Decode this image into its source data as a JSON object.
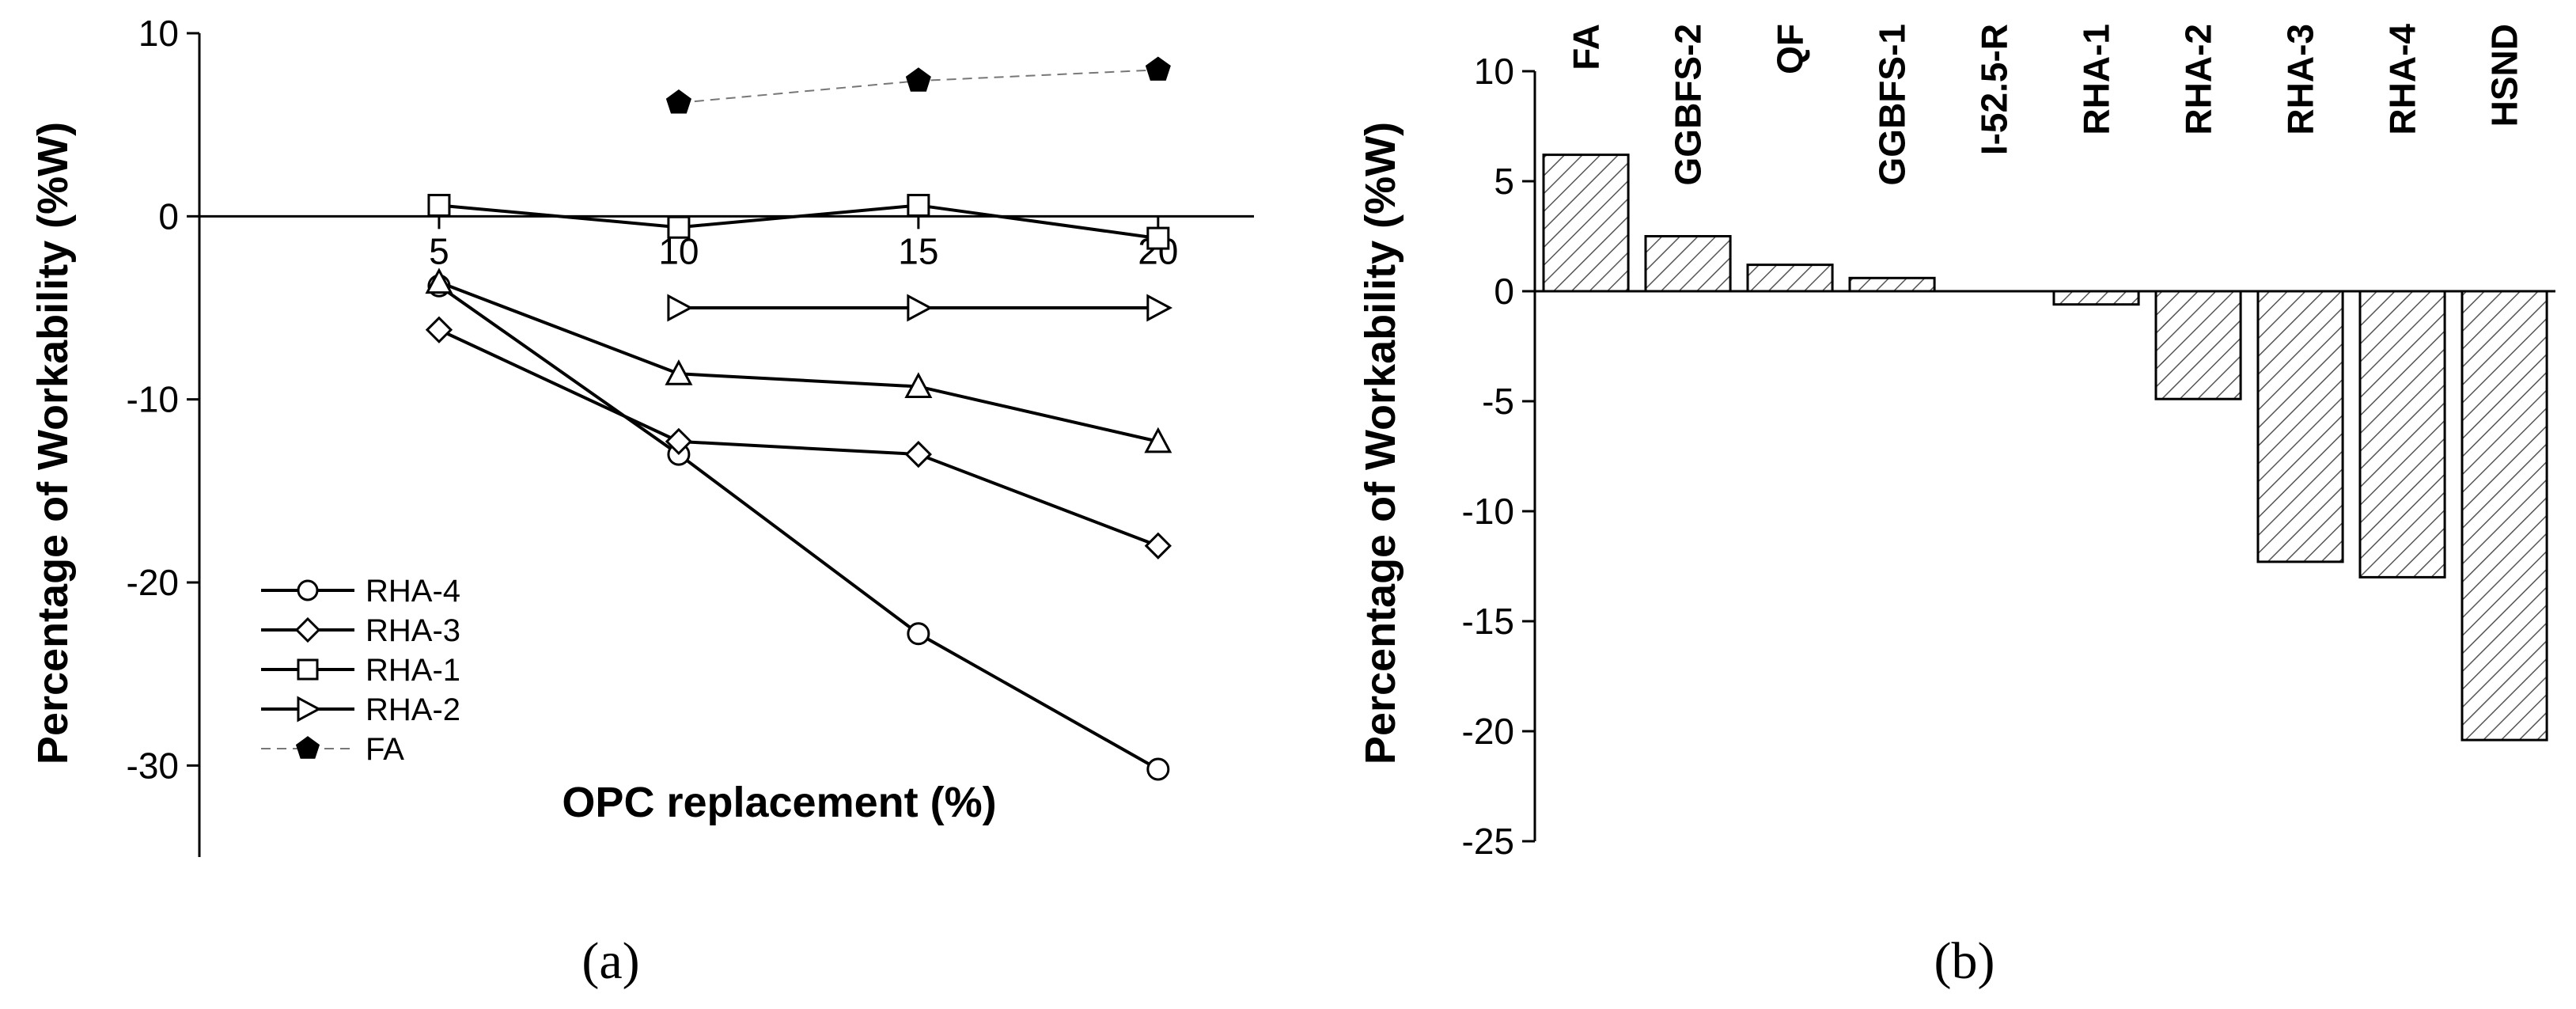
{
  "chart_data": [
    {
      "type": "line",
      "caption": "(a)",
      "xlabel": "OPC replacement (%)",
      "ylabel": "Percentage of Workability (%W)",
      "xlim": [
        0,
        22
      ],
      "ylim": [
        -35,
        10
      ],
      "x_ticks": [
        5,
        10,
        15,
        20
      ],
      "y_ticks": [
        10,
        0,
        -10,
        -20,
        -30
      ],
      "x_tick_labels": [
        "5",
        "10",
        "15",
        "20"
      ],
      "y_tick_labels": [
        "10",
        "0",
        "-10",
        "-20",
        "-30"
      ],
      "legend_position": "middle-left",
      "series": [
        {
          "name": "RHA-4",
          "marker": "circle",
          "line": "solid",
          "x": [
            5,
            10,
            15,
            20
          ],
          "y": [
            -3.8,
            -13,
            -22.8,
            -30.2
          ]
        },
        {
          "name": "RHA-3",
          "marker": "diamond",
          "line": "solid",
          "x": [
            5,
            10,
            15,
            20
          ],
          "y": [
            -6.2,
            -12.3,
            -13,
            -18
          ]
        },
        {
          "name": "RHA-1",
          "marker": "square",
          "line": "solid",
          "x": [
            5,
            10,
            15,
            20
          ],
          "y": [
            0.6,
            -0.6,
            0.6,
            -1.2
          ]
        },
        {
          "name": "RHA-2",
          "marker": "triangle-right",
          "line": "solid",
          "x": [
            10,
            15,
            20
          ],
          "y": [
            -5,
            -5,
            -5
          ]
        },
        {
          "name": "",
          "marker": "triangle-up",
          "line": "solid",
          "x": [
            5,
            10,
            15,
            20
          ],
          "y": [
            -3.6,
            -8.6,
            -9.3,
            -12.3
          ]
        },
        {
          "name": "FA",
          "marker": "pentagon-filled",
          "line": "dashed",
          "x": [
            10,
            15,
            20
          ],
          "y": [
            6.2,
            7.4,
            8
          ]
        }
      ]
    },
    {
      "type": "bar",
      "caption": "(b)",
      "ylabel": "Percentage of Workability (%W)",
      "ylim": [
        -25,
        10
      ],
      "y_ticks": [
        10,
        5,
        0,
        -5,
        -10,
        -15,
        -20,
        -25
      ],
      "y_tick_labels": [
        "10",
        "5",
        "0",
        "-5",
        "-10",
        "-15",
        "-20",
        "-25"
      ],
      "bar_fill": "hatched",
      "categories": [
        "FA",
        "GGBFS-2",
        "QF",
        "GGBFS-1",
        "I-52.5-R",
        "RHA-1",
        "RHA-2",
        "RHA-3",
        "RHA-4",
        "HSND"
      ],
      "values": [
        6.2,
        2.5,
        1.2,
        0.6,
        0,
        -0.6,
        -4.9,
        -12.3,
        -13,
        -20.4
      ]
    }
  ]
}
